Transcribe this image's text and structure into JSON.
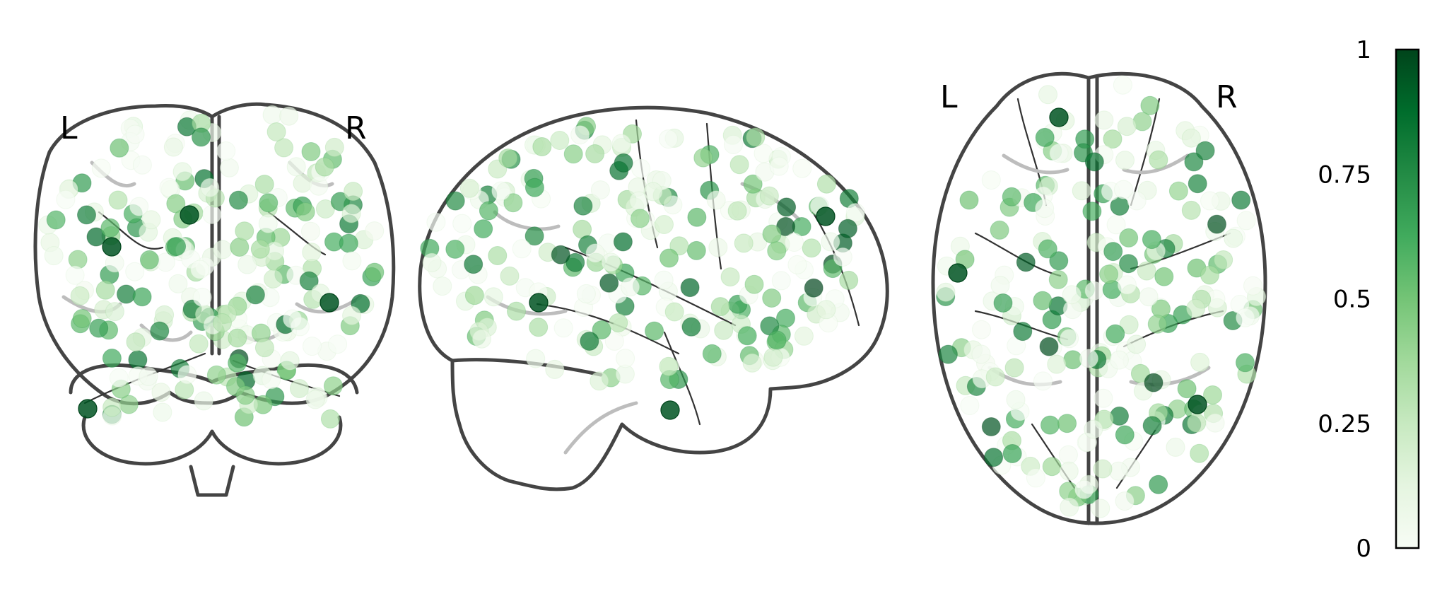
{
  "views": {
    "coronal": {
      "left_label": "L",
      "right_label": "R"
    },
    "sagittal": {},
    "axial": {
      "left_label": "L",
      "right_label": "R"
    }
  },
  "colorbar": {
    "colormap": "Greens",
    "colors": [
      "#f7fcf5",
      "#e5f5e0",
      "#c7e9c0",
      "#a1d99b",
      "#74c476",
      "#41ab5d",
      "#238b45",
      "#006d2c",
      "#00441b"
    ],
    "ticks": [
      {
        "value": 1,
        "label": "1"
      },
      {
        "value": 0.75,
        "label": "0.75"
      },
      {
        "value": 0.5,
        "label": "0.5"
      },
      {
        "value": 0.25,
        "label": "0.25"
      },
      {
        "value": 0,
        "label": "0"
      }
    ],
    "range": [
      0,
      1
    ]
  },
  "node_alpha": 0.7,
  "node_count_per_view": 220
}
